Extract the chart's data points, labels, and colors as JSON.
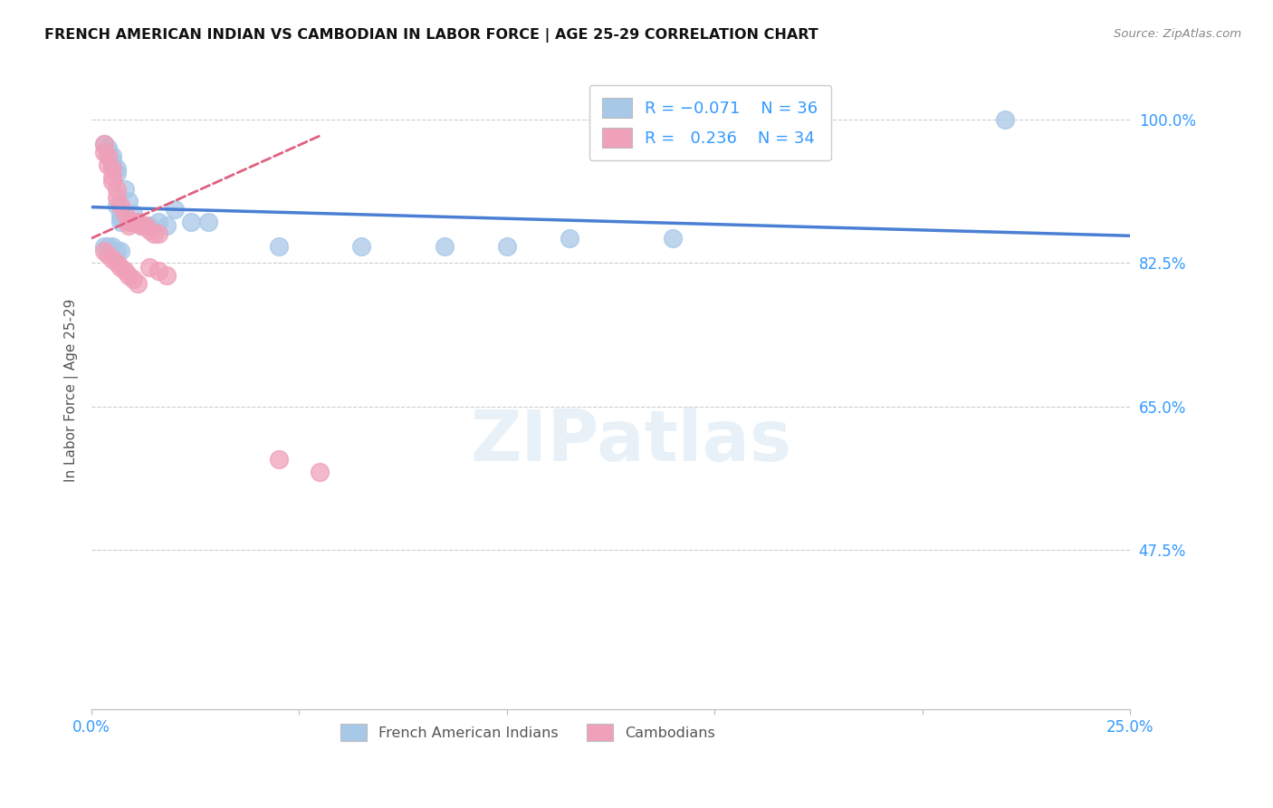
{
  "title": "FRENCH AMERICAN INDIAN VS CAMBODIAN IN LABOR FORCE | AGE 25-29 CORRELATION CHART",
  "source": "Source: ZipAtlas.com",
  "ylabel": "In Labor Force | Age 25-29",
  "legend_blue_label": "French American Indians",
  "legend_pink_label": "Cambodians",
  "R_blue": -0.071,
  "N_blue": 36,
  "R_pink": 0.236,
  "N_pink": 34,
  "blue_color": "#a8c8e8",
  "pink_color": "#f0a0b8",
  "blue_line_color": "#4a7fd4",
  "pink_line_color": "#e06080",
  "xmin": 0.0,
  "xmax": 0.25,
  "ymin": 0.28,
  "ymax": 1.06,
  "yticks": [
    1.0,
    0.825,
    0.65,
    0.475
  ],
  "ytick_labels": [
    "100.0%",
    "82.5%",
    "65.0%",
    "47.5%"
  ],
  "xtick_labels": [
    "0.0%",
    "25.0%"
  ],
  "xticks": [
    0.0,
    0.25
  ],
  "watermark_text": "ZIPatlas",
  "blue_scatter_x": [
    0.003,
    0.004,
    0.004,
    0.005,
    0.005,
    0.005,
    0.006,
    0.006,
    0.006,
    0.007,
    0.007,
    0.007,
    0.008,
    0.009,
    0.01,
    0.01,
    0.011,
    0.012,
    0.014,
    0.016,
    0.018,
    0.02,
    0.024,
    0.028,
    0.045,
    0.065,
    0.085,
    0.1,
    0.115,
    0.14,
    0.003,
    0.004,
    0.005,
    0.006,
    0.007,
    0.22
  ],
  "blue_scatter_y": [
    0.97,
    0.965,
    0.96,
    0.955,
    0.95,
    0.945,
    0.94,
    0.935,
    0.895,
    0.885,
    0.88,
    0.875,
    0.915,
    0.9,
    0.885,
    0.875,
    0.875,
    0.87,
    0.87,
    0.875,
    0.87,
    0.89,
    0.875,
    0.875,
    0.845,
    0.845,
    0.845,
    0.845,
    0.855,
    0.855,
    0.845,
    0.845,
    0.845,
    0.84,
    0.84,
    1.0
  ],
  "pink_scatter_x": [
    0.003,
    0.003,
    0.004,
    0.004,
    0.005,
    0.005,
    0.005,
    0.006,
    0.006,
    0.007,
    0.008,
    0.009,
    0.009,
    0.01,
    0.011,
    0.012,
    0.013,
    0.014,
    0.015,
    0.016,
    0.014,
    0.016,
    0.018,
    0.003,
    0.004,
    0.005,
    0.006,
    0.007,
    0.008,
    0.009,
    0.01,
    0.011,
    0.045,
    0.055
  ],
  "pink_scatter_y": [
    0.97,
    0.96,
    0.955,
    0.945,
    0.94,
    0.93,
    0.925,
    0.915,
    0.905,
    0.895,
    0.885,
    0.875,
    0.87,
    0.875,
    0.875,
    0.87,
    0.87,
    0.865,
    0.86,
    0.86,
    0.82,
    0.815,
    0.81,
    0.84,
    0.835,
    0.83,
    0.825,
    0.82,
    0.815,
    0.81,
    0.805,
    0.8,
    0.585,
    0.57
  ],
  "blue_trend_x": [
    0.0,
    0.25
  ],
  "blue_trend_y": [
    0.893,
    0.858
  ],
  "pink_trend_x": [
    0.0,
    0.055
  ],
  "pink_trend_y": [
    0.855,
    0.98
  ]
}
